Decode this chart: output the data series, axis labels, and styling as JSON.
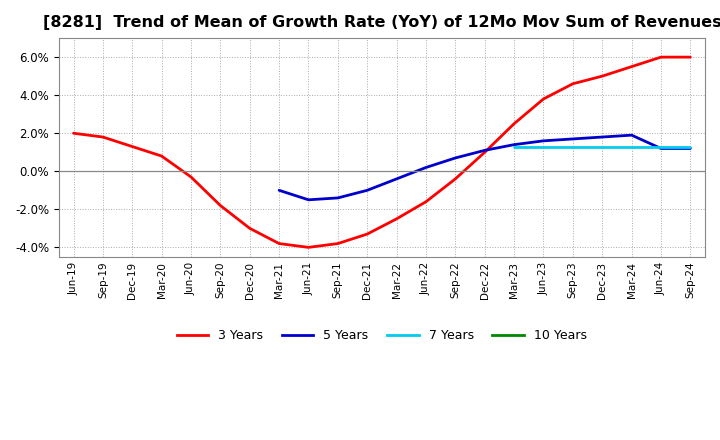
{
  "title": "[8281]  Trend of Mean of Growth Rate (YoY) of 12Mo Mov Sum of Revenues",
  "title_fontsize": 11.5,
  "background_color": "#ffffff",
  "plot_bg_color": "#ffffff",
  "grid_color": "#aaaaaa",
  "ylim": [
    -0.045,
    0.07
  ],
  "yticks": [
    -0.04,
    -0.02,
    0.0,
    0.02,
    0.04,
    0.06
  ],
  "x_labels": [
    "Jun-19",
    "Sep-19",
    "Dec-19",
    "Mar-20",
    "Jun-20",
    "Sep-20",
    "Dec-20",
    "Mar-21",
    "Jun-21",
    "Sep-21",
    "Dec-21",
    "Mar-22",
    "Jun-22",
    "Sep-22",
    "Dec-22",
    "Mar-23",
    "Jun-23",
    "Sep-23",
    "Dec-23",
    "Mar-24",
    "Jun-24",
    "Sep-24"
  ],
  "series": {
    "3 Years": {
      "color": "#ff0000",
      "linewidth": 2.0,
      "data_x": [
        0,
        1,
        2,
        3,
        4,
        5,
        6,
        7,
        8,
        9,
        10,
        11,
        12,
        13,
        14,
        15,
        16,
        17,
        18,
        19,
        20,
        21
      ],
      "data_y": [
        0.02,
        0.018,
        0.013,
        0.008,
        -0.003,
        -0.018,
        -0.03,
        -0.038,
        -0.04,
        -0.038,
        -0.033,
        -0.025,
        -0.016,
        -0.004,
        0.01,
        0.025,
        0.038,
        0.046,
        0.05,
        0.055,
        0.06,
        0.06
      ]
    },
    "5 Years": {
      "color": "#0000cc",
      "linewidth": 2.0,
      "data_x": [
        7,
        8,
        9,
        10,
        11,
        12,
        13,
        14,
        15,
        16,
        17,
        18,
        19,
        20,
        21
      ],
      "data_y": [
        -0.01,
        -0.015,
        -0.014,
        -0.01,
        -0.004,
        0.002,
        0.007,
        0.011,
        0.014,
        0.016,
        0.017,
        0.018,
        0.019,
        0.012,
        0.012
      ]
    },
    "7 Years": {
      "color": "#00ccee",
      "linewidth": 2.0,
      "data_x": [
        15,
        16,
        17,
        18,
        19,
        20,
        21
      ],
      "data_y": [
        0.013,
        0.013,
        0.013,
        0.013,
        0.013,
        0.013,
        0.013
      ]
    },
    "10 Years": {
      "color": "#008800",
      "linewidth": 2.0,
      "data_x": [],
      "data_y": []
    }
  },
  "legend_entries": [
    "3 Years",
    "5 Years",
    "7 Years",
    "10 Years"
  ],
  "legend_colors": [
    "#ff0000",
    "#0000cc",
    "#00ccee",
    "#008800"
  ]
}
